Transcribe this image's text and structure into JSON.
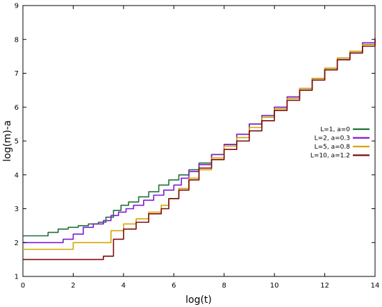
{
  "chart_data": {
    "type": "line",
    "title": "",
    "xlabel": "log(t)",
    "ylabel": "log(m)-a",
    "xlim": [
      0,
      14
    ],
    "ylim": [
      1,
      9
    ],
    "xticks": [
      0,
      2,
      4,
      6,
      8,
      10,
      12,
      14
    ],
    "yticks": [
      1,
      2,
      3,
      4,
      5,
      6,
      7,
      8,
      9
    ],
    "grid": false,
    "legend_position": "right",
    "series": [
      {
        "name": "L=1, a=0",
        "color": "#1e6e3a",
        "x": [
          0,
          0.6,
          1.0,
          1.4,
          1.8,
          2.2,
          2.6,
          3.0,
          3.3,
          3.6,
          3.9,
          4.2,
          4.6,
          5.0,
          5.4,
          5.8,
          6.2,
          6.6,
          7.0,
          7.5,
          8.0,
          8.5,
          9.0,
          9.5,
          10.0,
          10.5,
          11.0,
          11.5,
          12.0,
          12.5,
          13.0,
          13.5,
          14.0
        ],
        "values": [
          2.2,
          2.2,
          2.3,
          2.4,
          2.45,
          2.5,
          2.55,
          2.6,
          2.75,
          2.95,
          3.1,
          3.2,
          3.35,
          3.5,
          3.7,
          3.85,
          4.0,
          4.15,
          4.35,
          4.6,
          4.9,
          5.2,
          5.5,
          5.75,
          6.0,
          6.3,
          6.55,
          6.85,
          7.1,
          7.4,
          7.6,
          7.85,
          8.05
        ]
      },
      {
        "name": "L=2, a=0.3",
        "color": "#7a1bd2",
        "x": [
          0,
          1.0,
          1.6,
          2.0,
          2.4,
          2.8,
          3.2,
          3.5,
          3.8,
          4.1,
          4.4,
          4.8,
          5.2,
          5.6,
          6.0,
          6.3,
          6.6,
          7.0,
          7.5,
          8.0,
          8.5,
          9.0,
          9.5,
          10.0,
          10.5,
          11.0,
          11.5,
          12.0,
          12.5,
          13.0,
          13.5,
          14.0
        ],
        "values": [
          2.0,
          2.0,
          2.1,
          2.25,
          2.45,
          2.55,
          2.65,
          2.8,
          2.9,
          3.0,
          3.1,
          3.25,
          3.4,
          3.55,
          3.7,
          3.9,
          4.1,
          4.3,
          4.6,
          4.9,
          5.2,
          5.5,
          5.75,
          6.0,
          6.3,
          6.55,
          6.85,
          7.15,
          7.45,
          7.65,
          7.9,
          8.05
        ]
      },
      {
        "name": "L=5, a=0.8",
        "color": "#d4a500",
        "x": [
          0,
          1.2,
          2.0,
          3.2,
          3.5,
          4.0,
          4.5,
          5.0,
          5.5,
          5.8,
          6.2,
          6.6,
          7.0,
          7.5,
          8.0,
          8.5,
          9.0,
          9.5,
          10.0,
          10.5,
          11.0,
          11.5,
          12.0,
          12.5,
          13.0,
          13.5,
          14.0
        ],
        "values": [
          1.8,
          1.8,
          2.0,
          2.0,
          2.35,
          2.55,
          2.7,
          2.9,
          3.1,
          3.3,
          3.6,
          3.9,
          4.15,
          4.5,
          4.85,
          5.1,
          5.4,
          5.7,
          5.95,
          6.25,
          6.55,
          6.85,
          7.15,
          7.45,
          7.65,
          7.85,
          8.0
        ]
      },
      {
        "name": "L=10, a=1.2",
        "color": "#7a0a0a",
        "x": [
          0,
          2.6,
          3.2,
          3.6,
          4.0,
          4.5,
          5.0,
          5.5,
          5.8,
          6.2,
          6.6,
          7.0,
          7.5,
          8.0,
          8.5,
          9.0,
          9.5,
          10.0,
          10.5,
          11.0,
          11.5,
          12.0,
          12.5,
          13.0,
          13.5,
          14.0
        ],
        "values": [
          1.5,
          1.5,
          1.6,
          2.1,
          2.4,
          2.6,
          2.85,
          3.0,
          3.3,
          3.55,
          3.85,
          4.2,
          4.45,
          4.75,
          5.0,
          5.3,
          5.6,
          5.9,
          6.2,
          6.5,
          6.8,
          7.1,
          7.4,
          7.6,
          7.8,
          8.0
        ]
      }
    ]
  }
}
